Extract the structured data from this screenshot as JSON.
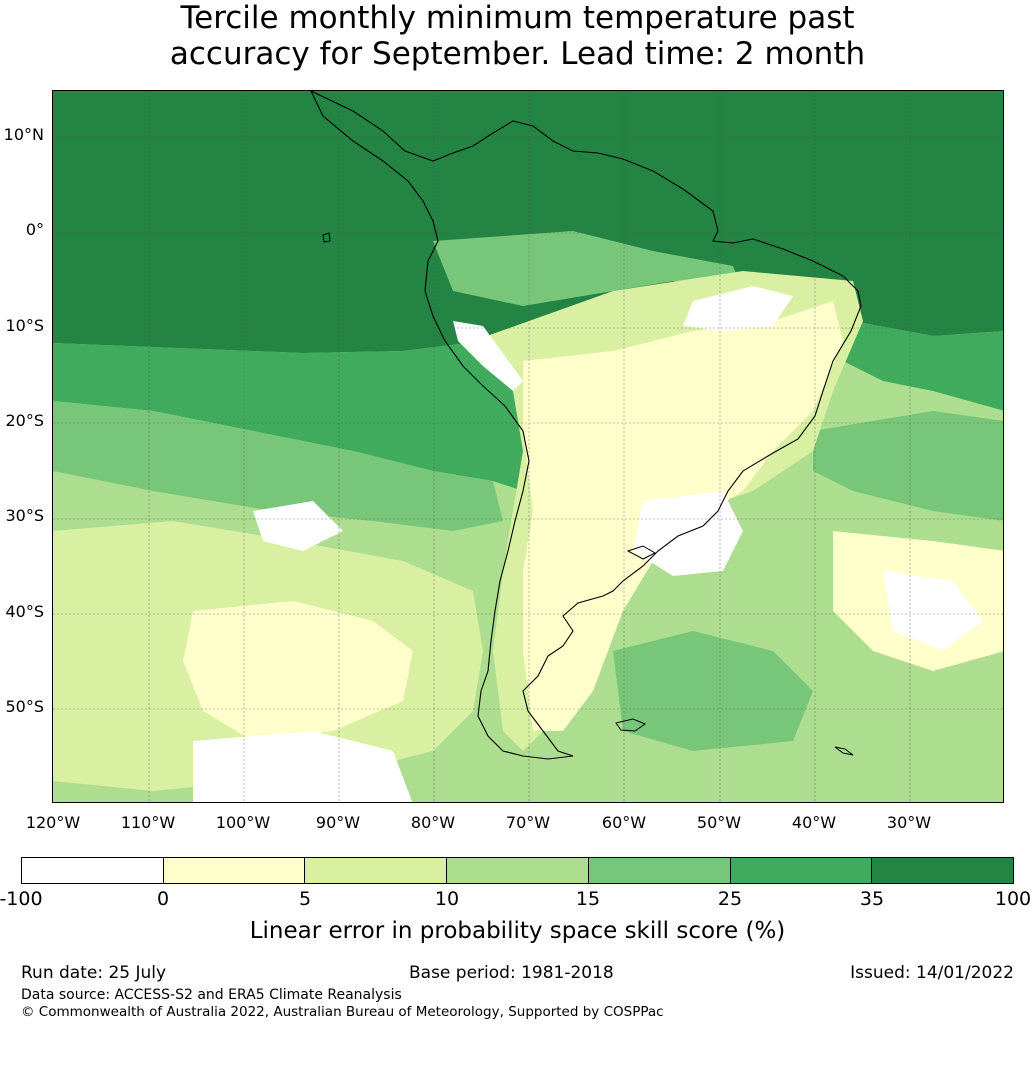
{
  "title": {
    "line1": "Tercile monthly minimum temperature past",
    "line2": "accuracy for September. Lead time: 2 month"
  },
  "map": {
    "region": "South America",
    "lat_labels": [
      "10°N",
      "0°",
      "10°S",
      "20°S",
      "30°S",
      "40°S",
      "50°S"
    ],
    "lon_labels": [
      "120°W",
      "110°W",
      "100°W",
      "90°W",
      "80°W",
      "70°W",
      "60°W",
      "50°W",
      "40°W",
      "30°W"
    ]
  },
  "colorbar": {
    "ticks": [
      "-100",
      "0",
      "5",
      "10",
      "15",
      "25",
      "35",
      "100"
    ],
    "colors": [
      "#ffffff",
      "#ffffcc",
      "#d9f0a3",
      "#addd8e",
      "#78c679",
      "#41ab5d",
      "#238443"
    ],
    "label": "Linear error in probability space skill score (%)"
  },
  "footer": {
    "run_date": "Run date: 25 July",
    "base_period": "Base period: 1981-2018",
    "issued": "Issued: 14/01/2022",
    "data_source": "Data source: ACCESS-S2 and ERA5 Climate Reanalysis",
    "copyright": "© Commonwealth of Australia 2022, Australian Bureau of Meteorology, Supported by COSPPac"
  }
}
